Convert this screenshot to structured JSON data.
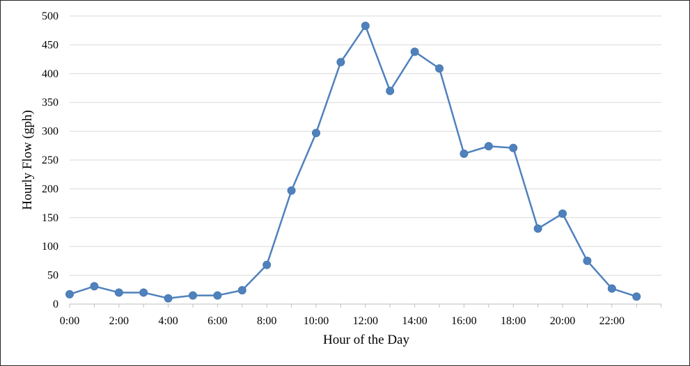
{
  "chart_data": {
    "type": "line",
    "title": "",
    "xlabel": "Hour of the Day",
    "ylabel": "Hourly Flow (gph)",
    "x": [
      "0:00",
      "1:00",
      "2:00",
      "3:00",
      "4:00",
      "5:00",
      "6:00",
      "7:00",
      "8:00",
      "9:00",
      "10:00",
      "11:00",
      "12:00",
      "13:00",
      "14:00",
      "15:00",
      "16:00",
      "17:00",
      "18:00",
      "19:00",
      "20:00",
      "21:00",
      "22:00",
      "23:00"
    ],
    "x_tick_labels": [
      "0:00",
      "2:00",
      "4:00",
      "6:00",
      "8:00",
      "10:00",
      "12:00",
      "14:00",
      "16:00",
      "18:00",
      "20:00",
      "22:00"
    ],
    "y_ticks": [
      0,
      50,
      100,
      150,
      200,
      250,
      300,
      350,
      400,
      450,
      500
    ],
    "ylim": [
      0,
      500
    ],
    "grid": "horizontal",
    "legend": "none",
    "series": [
      {
        "values": [
          17,
          31,
          20,
          20,
          10,
          15,
          15,
          24,
          68,
          197,
          297,
          420,
          483,
          370,
          438,
          409,
          261,
          274,
          271,
          131,
          157,
          75,
          27,
          13
        ],
        "color": "#4F81BD"
      }
    ]
  }
}
